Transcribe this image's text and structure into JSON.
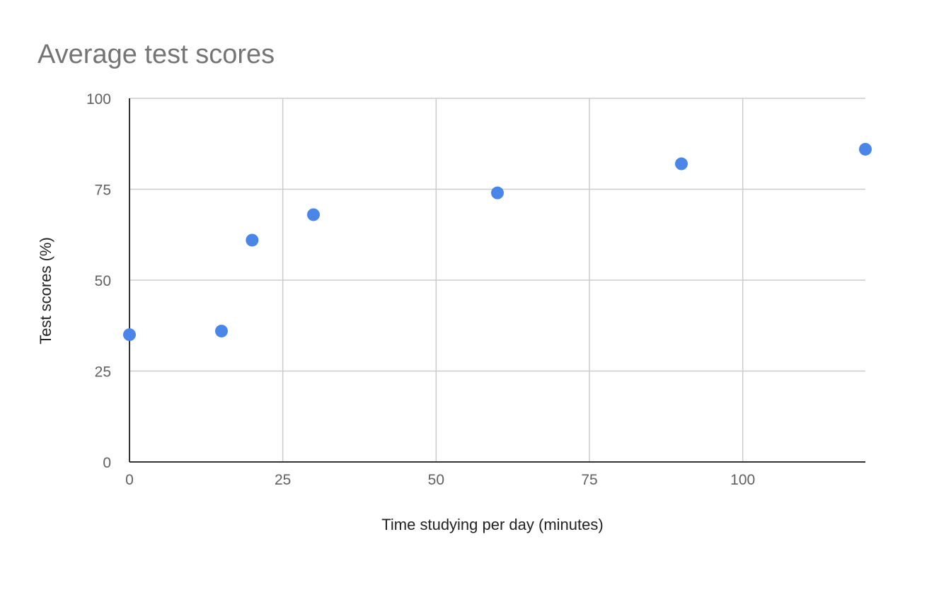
{
  "chart_data": {
    "type": "scatter",
    "title": "Average test scores",
    "xlabel": "Time studying per day (minutes)",
    "ylabel": "Test scores (%)",
    "xlim": [
      0,
      120
    ],
    "ylim": [
      0,
      100
    ],
    "x_ticks": [
      0,
      25,
      50,
      75,
      100
    ],
    "y_ticks": [
      0,
      25,
      50,
      75,
      100
    ],
    "grid": true,
    "legend": "none",
    "point_color": "#4a86e8",
    "points": [
      {
        "x": 0,
        "y": 35
      },
      {
        "x": 15,
        "y": 36
      },
      {
        "x": 20,
        "y": 61
      },
      {
        "x": 30,
        "y": 68
      },
      {
        "x": 60,
        "y": 74
      },
      {
        "x": 90,
        "y": 82
      },
      {
        "x": 120,
        "y": 86
      }
    ]
  }
}
